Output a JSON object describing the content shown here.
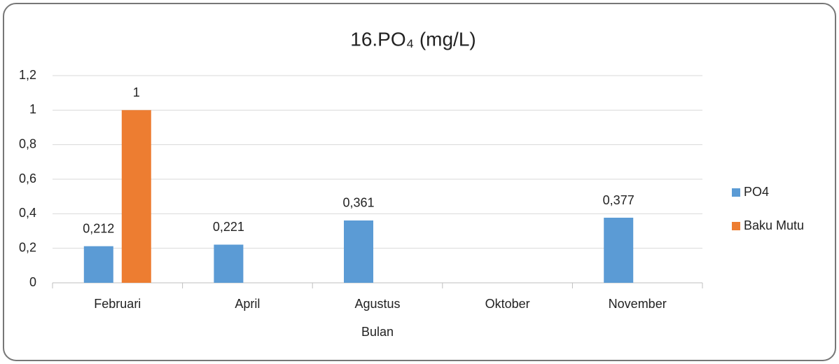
{
  "chart_data": {
    "type": "bar",
    "title": "16.PO₄ (mg/L)",
    "x_label": "Bulan",
    "categories": [
      "Februari",
      "April",
      "Agustus",
      "Oktober",
      "November"
    ],
    "series": [
      {
        "name": "PO4",
        "color": "#5b9bd5",
        "values": [
          0.212,
          0.221,
          0.361,
          null,
          0.377
        ],
        "value_labels": [
          "0,212",
          "0,221",
          "0,361",
          null,
          "0,377"
        ]
      },
      {
        "name": "Baku Mutu",
        "color": "#ed7d31",
        "values": [
          1,
          null,
          null,
          null,
          null
        ]
      }
    ],
    "ylim": [
      0,
      1.2
    ],
    "yticks": [
      0,
      {
        "value": 0.2,
        "label": "0,2"
      },
      {
        "value": 0.4,
        "label": "0,4"
      },
      {
        "value": 0.6,
        "label": "0,6"
      },
      {
        "value": 0.8,
        "label": "0,8"
      },
      1,
      {
        "value": 1.2,
        "label": "1,2"
      }
    ],
    "grid": true,
    "legend": "right"
  }
}
